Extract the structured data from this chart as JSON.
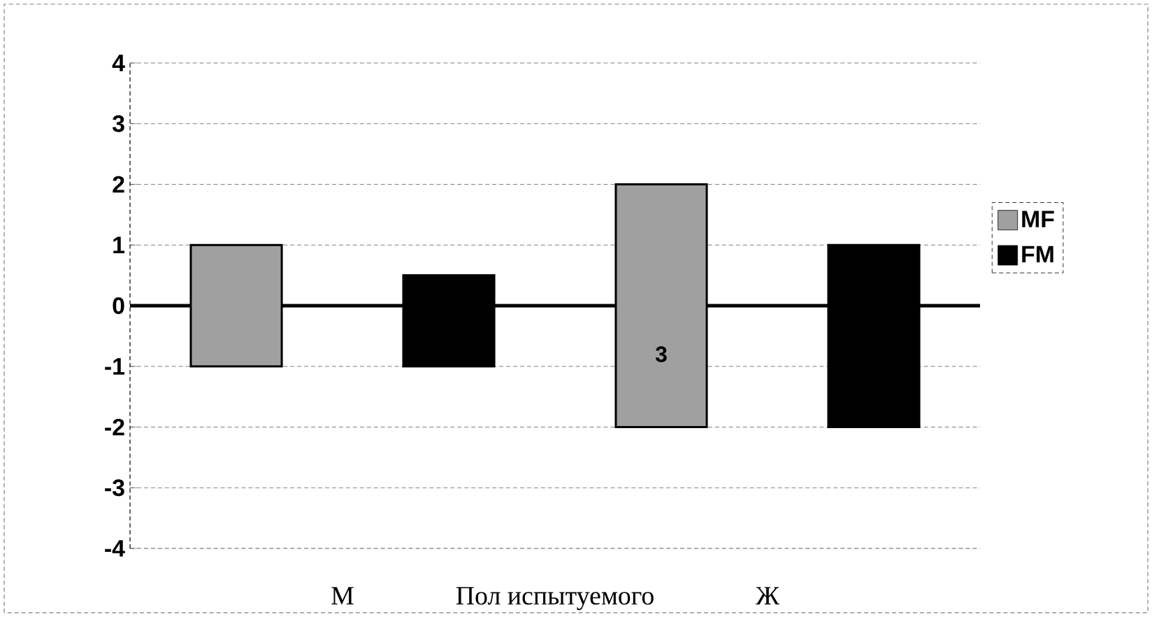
{
  "chart_data": {
    "type": "bar",
    "xlabel": "Пол испытуемого",
    "categories": [
      "М",
      "Ж"
    ],
    "series": [
      {
        "name": "MF",
        "color": "#a0a0a0",
        "base": [
          -1,
          -2
        ],
        "values": [
          2,
          4
        ]
      },
      {
        "name": "FM",
        "color": "#000000",
        "base": [
          -1,
          -2
        ],
        "values": [
          1.5,
          3
        ]
      }
    ],
    "ylim": [
      -4,
      4
    ],
    "yticks": [
      -4,
      -3,
      -2,
      -1,
      0,
      1,
      2,
      3,
      4
    ],
    "grid": "y",
    "legend": "right",
    "annotations": [
      "3"
    ]
  }
}
